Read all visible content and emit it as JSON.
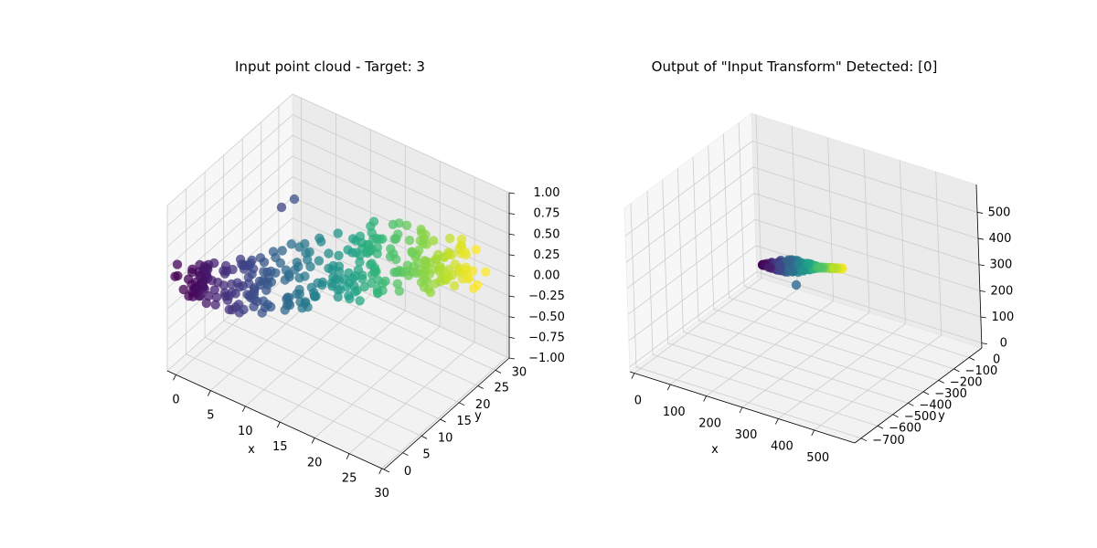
{
  "chart_data": [
    {
      "type": "scatter",
      "title": "Input point cloud - Target: 3",
      "xlabel": "x",
      "ylabel": "y",
      "zlabel": "",
      "xlim": [
        0,
        30
      ],
      "ylim": [
        0,
        30
      ],
      "zlim": [
        -1,
        1
      ],
      "x_ticks": [
        "0",
        "5",
        "10",
        "15",
        "20",
        "25",
        "30"
      ],
      "y_ticks": [
        "0",
        "5",
        "10",
        "15",
        "20",
        "25",
        "30"
      ],
      "z_ticks": [
        "−1.00",
        "−0.75",
        "−0.50",
        "−0.25",
        "0.00",
        "0.25",
        "0.50",
        "0.75",
        "1.00"
      ],
      "colormap": "viridis",
      "marker_alpha": 0.75,
      "grid": true
    },
    {
      "type": "scatter",
      "title": "Output of \"Input Transform\" Detected: [0]",
      "xlabel": "x",
      "ylabel": "y",
      "zlabel": "",
      "xlim": [
        0,
        550
      ],
      "ylim": [
        -720,
        20
      ],
      "zlim": [
        -20,
        540
      ],
      "x_ticks": [
        "0",
        "100",
        "200",
        "300",
        "400",
        "500"
      ],
      "y_ticks": [
        "0",
        "−100",
        "−200",
        "−300",
        "−400",
        "−500",
        "−600",
        "−700"
      ],
      "z_ticks": [
        "0",
        "100",
        "200",
        "300",
        "400",
        "500"
      ],
      "colormap": "viridis",
      "marker_alpha": 0.75,
      "grid": true
    }
  ]
}
